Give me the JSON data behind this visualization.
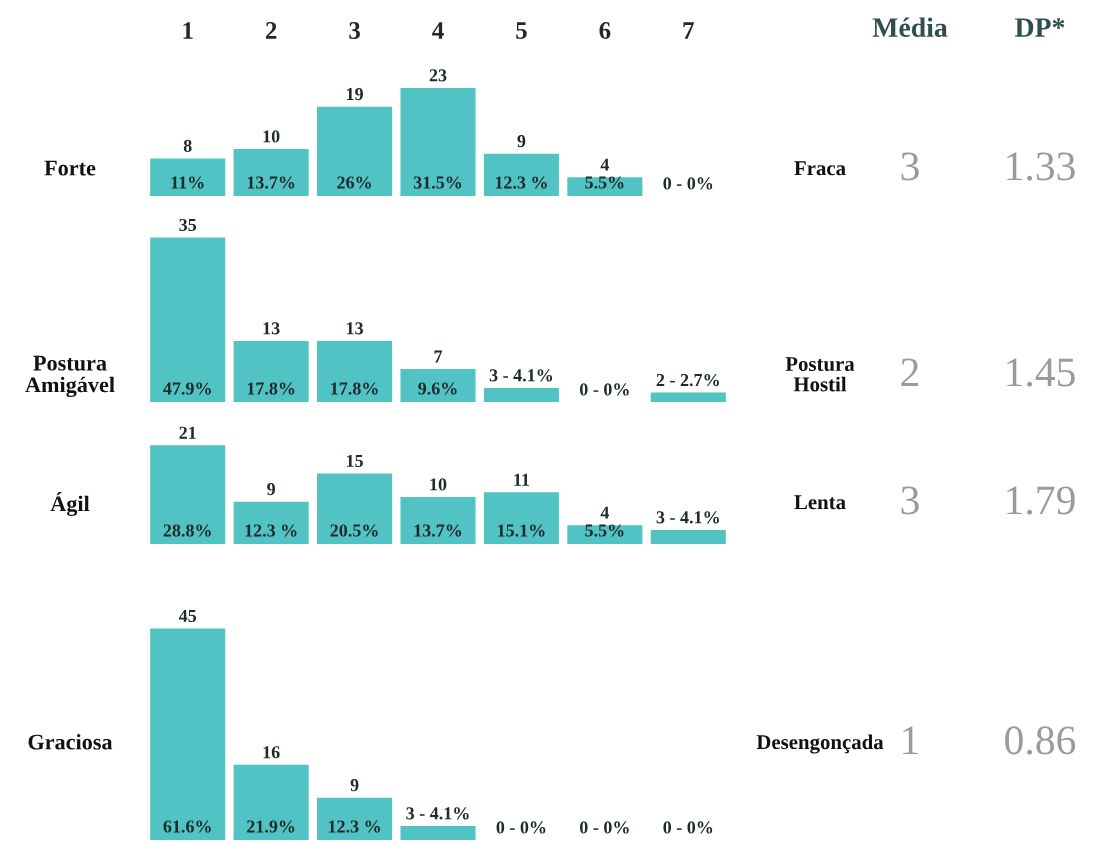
{
  "chart_data": [
    {
      "type": "bar",
      "ylabel": "Forte",
      "y2label": "Fraca",
      "categories": [
        "1",
        "2",
        "3",
        "4",
        "5",
        "6",
        "7"
      ],
      "tick_labels": "x",
      "color": "#52c3c4",
      "values": [
        8,
        10,
        19,
        23,
        9,
        4,
        0
      ],
      "value_labels": [
        "8",
        "10",
        "19",
        "23",
        "9",
        "4",
        "0 - 0%"
      ],
      "annotations": [
        {
          "text": "11%",
          "x": "1",
          "y": 0
        },
        {
          "text": "13.7%",
          "x": "2",
          "y": 0
        },
        {
          "text": "26%",
          "x": "3",
          "y": 0
        },
        {
          "text": "31.5%",
          "x": "4",
          "y": 0
        },
        {
          "text": "12.3 %",
          "x": "5",
          "y": 0
        },
        {
          "text": "5.5%",
          "x": "6",
          "y": 0
        },
        "3",
        "1.33"
      ]
    },
    {
      "type": "bar",
      "ylabel": "Postura\nAmigável",
      "y2label": "Postura\nHostil",
      "categories": [
        null,
        null,
        null,
        null,
        null,
        null,
        null
      ],
      "tick_labels": false,
      "color": "#52c3c4",
      "values": [
        35,
        13,
        13,
        7,
        3,
        0,
        2
      ],
      "value_labels": [
        "35",
        "13",
        "13",
        "7",
        "3 - 4.1%",
        "0 - 0%",
        "2 - 2.7%"
      ],
      "annotations": [
        {
          "text": "47.9%",
          "y": 0
        },
        {
          "text": "17.8%",
          "y": 0
        },
        {
          "text": "17.8%",
          "y": 0
        },
        {
          "text": "9.6%",
          "y": 0
        },
        "2",
        "1.45"
      ]
    },
    {
      "type": "bar",
      "ylabel": "Ágil",
      "y2label": "Lenta",
      "categories": [
        null,
        null,
        null,
        null,
        null,
        null,
        null
      ],
      "tick_labels": false,
      "color": "#52c3c4",
      "values": [
        21,
        9,
        15,
        10,
        11,
        4,
        3
      ],
      "value_labels": [
        "21",
        "9",
        "15",
        "10",
        "11",
        "4",
        "3 - 4.1%"
      ],
      "annotations": [
        {
          "text": "28.8%",
          "y": 0
        },
        {
          "text": "12.3 %",
          "y": 0
        },
        {
          "text": "20.5%",
          "y": 0
        },
        {
          "text": "13.7%",
          "y": 0
        },
        {
          "text": "15.1%",
          "y": 0
        },
        {
          "text": "5.5%",
          "y": 0
        },
        "3",
        "1.79"
      ]
    },
    {
      "type": "bar",
      "ylabel": "Graciosa",
      "y2label": "Desengonçada",
      "categories": [
        null,
        null,
        null,
        null,
        null,
        null,
        null
      ],
      "tick_labels": false,
      "color": "#52c3c4",
      "values": [
        45,
        16,
        9,
        3,
        0,
        0,
        0
      ],
      "value_labels": [
        "45",
        "16",
        "9",
        "3 - 4.1%",
        "0 - 0%",
        "0 - 0%",
        "0 - 0%"
      ],
      "annotations": [
        {
          "text": "61.6%",
          "y": 0
        },
        {
          "text": "21.9%",
          "y": 0
        },
        {
          "text": "12.3 %",
          "y": 0
        },
        "1",
        "0.86"
      ]
    },
    {
      "type": "other",
      "annotations": [
        "Média",
        "DP*"
      ]
    }
  ]
}
